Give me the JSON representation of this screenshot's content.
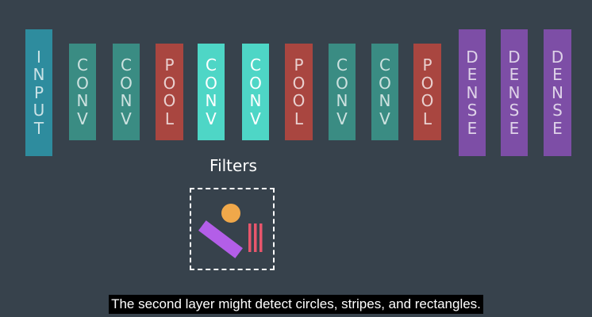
{
  "layers": [
    {
      "label": "INPUT",
      "color": "#2e8c9e",
      "bright": false
    },
    {
      "label": "CONV",
      "color": "#3a8c83",
      "bright": false
    },
    {
      "label": "CONV",
      "color": "#3a8c83",
      "bright": false
    },
    {
      "label": "POOL",
      "color": "#a94640",
      "bright": false
    },
    {
      "label": "CONV",
      "color": "#4ed6c6",
      "bright": true
    },
    {
      "label": "CONV",
      "color": "#4ed6c6",
      "bright": true
    },
    {
      "label": "POOL",
      "color": "#a94640",
      "bright": false
    },
    {
      "label": "CONV",
      "color": "#3a8c83",
      "bright": false
    },
    {
      "label": "CONV",
      "color": "#3a8c83",
      "bright": false
    },
    {
      "label": "POOL",
      "color": "#a94640",
      "bright": false
    },
    {
      "label": "DENSE",
      "color": "#7d4ea6",
      "bright": false
    },
    {
      "label": "DENSE",
      "color": "#7d4ea6",
      "bright": false
    },
    {
      "label": "DENSE",
      "color": "#7d4ea6",
      "bright": false
    }
  ],
  "filters": {
    "title": "Filters",
    "shapes": [
      {
        "name": "circle-shape",
        "color": "#f0a84a"
      },
      {
        "name": "rectangle-shape",
        "color": "#b35ee8"
      },
      {
        "name": "stripes-shape",
        "color": "#e8566c"
      }
    ]
  },
  "caption": "The second layer might detect circles, stripes, and rectangles."
}
